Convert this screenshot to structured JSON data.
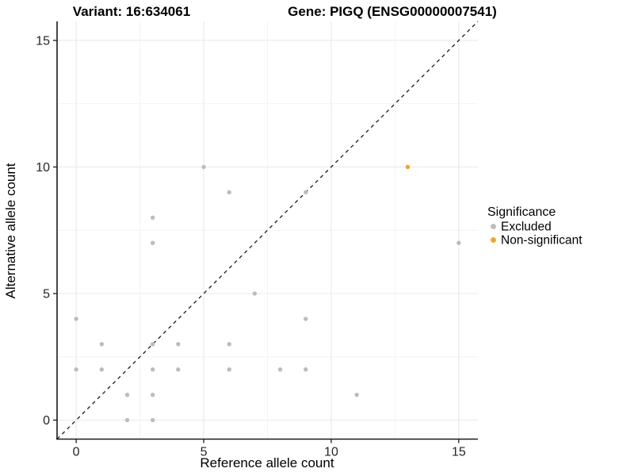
{
  "header": {
    "variant_title": "Variant: 16:634061",
    "gene_title": "Gene: PIGQ (ENSG00000007541)"
  },
  "chart_data": {
    "type": "scatter",
    "title_left": "Variant: 16:634061",
    "title_right": "Gene: PIGQ (ENSG00000007541)",
    "xlabel": "Reference allele count",
    "ylabel": "Alternative allele count",
    "xlim": [
      -0.75,
      15.75
    ],
    "ylim": [
      -0.75,
      15.75
    ],
    "x_ticks": [
      0,
      5,
      10,
      15
    ],
    "y_ticks": [
      0,
      5,
      10,
      15
    ],
    "x_minor_ticks": [
      2.5,
      7.5,
      12.5
    ],
    "y_minor_ticks": [
      2.5,
      7.5,
      12.5
    ],
    "grid": true,
    "identity_line": {
      "style": "dashed",
      "from": [
        -0.75,
        -0.75
      ],
      "to": [
        15.75,
        15.75
      ]
    },
    "legend": {
      "title": "Significance",
      "position": "right",
      "items": [
        {
          "label": "Excluded",
          "color": "#bcbcbc"
        },
        {
          "label": "Non-significant",
          "color": "#f9a11b"
        }
      ]
    },
    "series": [
      {
        "name": "Excluded",
        "color": "#bcbcbc",
        "points": [
          [
            0,
            2
          ],
          [
            0,
            4
          ],
          [
            1,
            2
          ],
          [
            1,
            3
          ],
          [
            2,
            0
          ],
          [
            2,
            1
          ],
          [
            3,
            0
          ],
          [
            3,
            1
          ],
          [
            3,
            2
          ],
          [
            3,
            3
          ],
          [
            3,
            7
          ],
          [
            3,
            8
          ],
          [
            4,
            2
          ],
          [
            4,
            3
          ],
          [
            5,
            10
          ],
          [
            6,
            2
          ],
          [
            6,
            3
          ],
          [
            6,
            9
          ],
          [
            7,
            5
          ],
          [
            8,
            2
          ],
          [
            9,
            2
          ],
          [
            9,
            4
          ],
          [
            9,
            9
          ],
          [
            11,
            1
          ],
          [
            15,
            7
          ]
        ]
      },
      {
        "name": "Non-significant",
        "color": "#f9a11b",
        "points": [
          [
            13,
            10
          ]
        ]
      }
    ]
  },
  "style_colors": {
    "major_grid": "#e8e8e8",
    "minor_grid": "#f4f4f4",
    "axis_line": "#1a1a1a",
    "identity_line": "#1a1a1a",
    "background": "#ffffff"
  }
}
